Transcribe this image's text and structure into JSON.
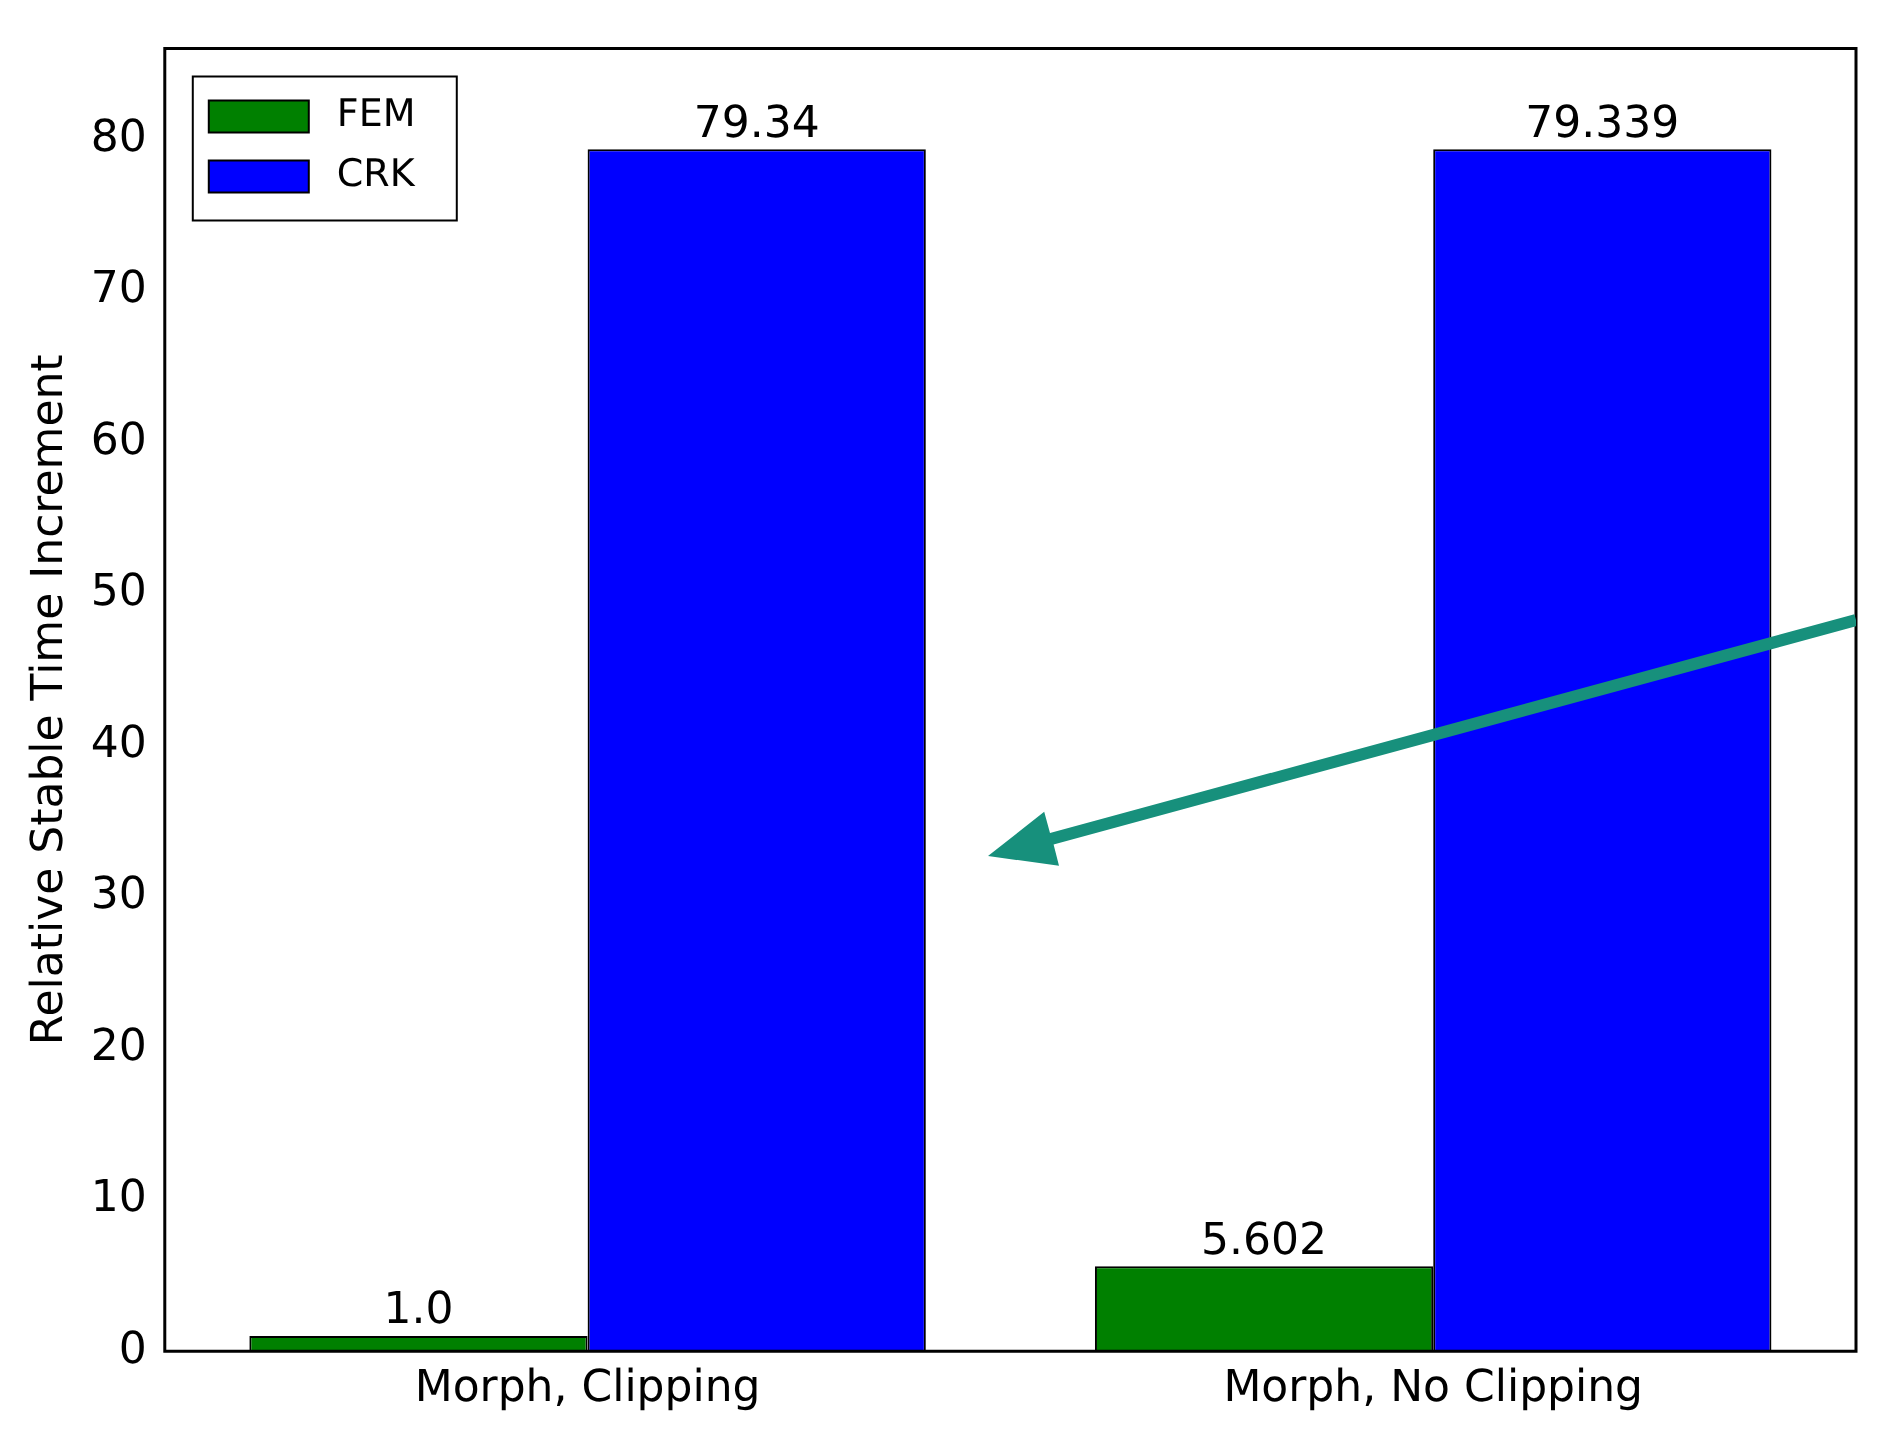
{
  "chart_data": {
    "type": "bar",
    "ylabel": "Relative Stable Time Increment",
    "categories": [
      "Morph, Clipping",
      "Morph, No Clipping"
    ],
    "series": [
      {
        "name": "FEM",
        "color": "#008000",
        "values": [
          1.0,
          5.602
        ],
        "value_labels": [
          "1.0",
          "5.602"
        ]
      },
      {
        "name": "CRK",
        "color": "#0000ff",
        "values": [
          79.34,
          79.339
        ],
        "value_labels": [
          "79.34",
          "79.339"
        ]
      }
    ],
    "ylim": [
      0,
      86
    ],
    "yticks": [
      0,
      10,
      20,
      30,
      40,
      50,
      60,
      70,
      80
    ],
    "grid": false,
    "legend": "top left"
  }
}
